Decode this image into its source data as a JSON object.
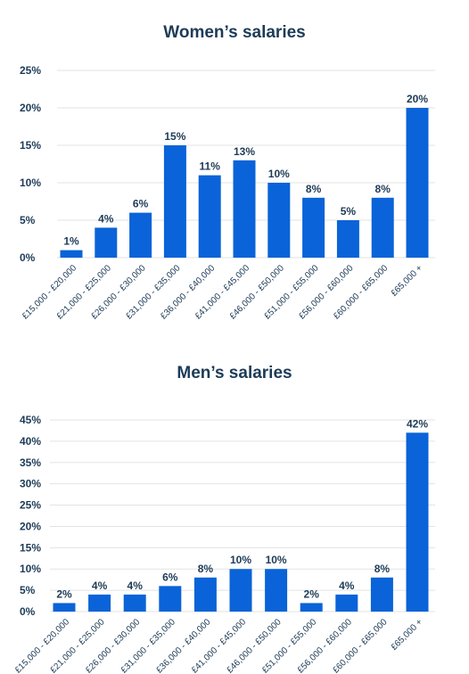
{
  "colors": {
    "bar": "#0a63d8",
    "text": "#1d3b57",
    "grid": "#e3e3e3"
  },
  "chart_data": [
    {
      "type": "bar",
      "title": "Women’s salaries",
      "categories": [
        "£15,000 - £20,000",
        "£21,000 - £25,000",
        "£26,000 - £30,000",
        "£31,000 - £35,000",
        "£36,000 - £40,000",
        "£41,000 - £45,000",
        "£46,000 - £50,000",
        "£51,000 - £55,000",
        "£56,000 - £60,000",
        "£60,000 - £65,000",
        "£65,000 +"
      ],
      "values": [
        1,
        4,
        6,
        15,
        11,
        13,
        10,
        8,
        5,
        8,
        20
      ],
      "value_labels": [
        "1%",
        "4%",
        "6%",
        "15%",
        "11%",
        "13%",
        "10%",
        "8%",
        "5%",
        "8%",
        "20%"
      ],
      "yticks": [
        0,
        5,
        10,
        15,
        20,
        25
      ],
      "ytick_labels": [
        "0%",
        "5%",
        "10%",
        "15%",
        "20%",
        "25%"
      ],
      "ylim": [
        0,
        25
      ],
      "grid": true
    },
    {
      "type": "bar",
      "title": "Men’s salaries",
      "categories": [
        "£15,000 - £20,000",
        "£21,000 - £25,000",
        "£26,000 - £30,000",
        "£31,000 - £35,000",
        "£36,000 - £40,000",
        "£41,000 - £45,000",
        "£46,000 - £50,000",
        "£51,000 - £55,000",
        "£56,000 - £60,000",
        "£60,000 - £65,000",
        "£65,000 +"
      ],
      "values": [
        2,
        4,
        4,
        6,
        8,
        10,
        10,
        2,
        4,
        8,
        42
      ],
      "value_labels": [
        "2%",
        "4%",
        "4%",
        "6%",
        "8%",
        "10%",
        "10%",
        "2%",
        "4%",
        "8%",
        "42%"
      ],
      "yticks": [
        0,
        5,
        10,
        15,
        20,
        25,
        30,
        35,
        40,
        45
      ],
      "ytick_labels": [
        "0%",
        "5%",
        "10%",
        "15%",
        "20%",
        "25%",
        "30%",
        "35%",
        "40%",
        "45%"
      ],
      "ylim": [
        0,
        45
      ],
      "grid": true
    }
  ]
}
